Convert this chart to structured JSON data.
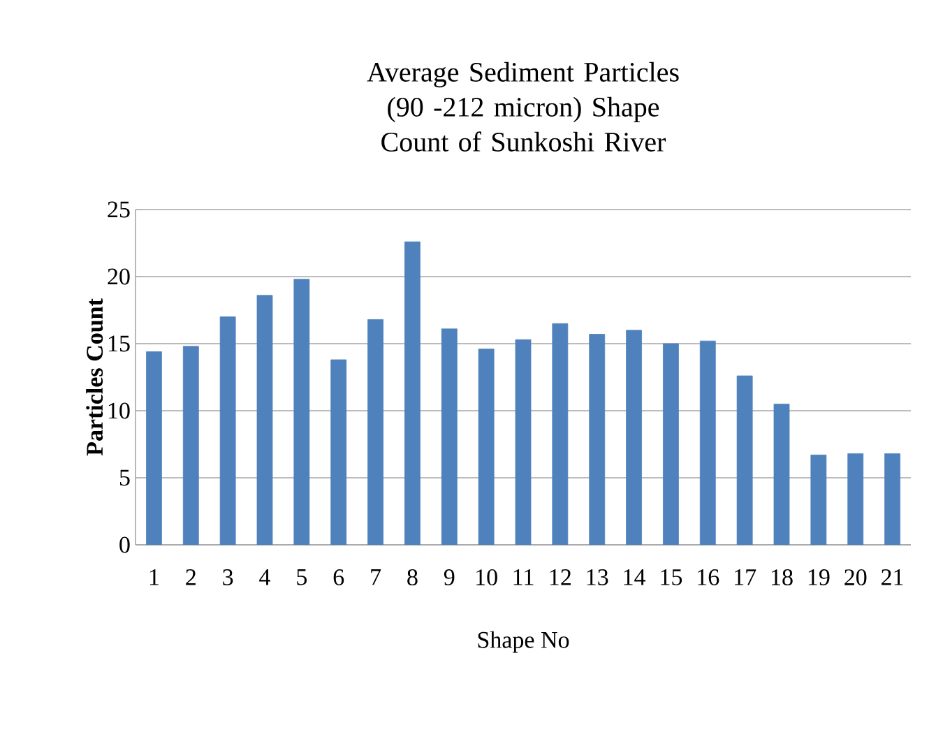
{
  "chart_data": {
    "type": "bar",
    "title": "Average Sediment Particles (90 -212 micron) Shape Count of Sunkoshi River",
    "xlabel": "Shape No",
    "ylabel": "Particles Count",
    "categories": [
      "1",
      "2",
      "3",
      "4",
      "5",
      "6",
      "7",
      "8",
      "9",
      "10",
      "11",
      "12",
      "13",
      "14",
      "15",
      "16",
      "17",
      "18",
      "19",
      "20",
      "21"
    ],
    "values": [
      14.4,
      14.8,
      17.0,
      18.6,
      19.8,
      13.8,
      16.8,
      22.6,
      16.1,
      14.6,
      15.3,
      16.5,
      15.7,
      16.0,
      15.0,
      15.2,
      12.6,
      10.5,
      6.7,
      6.8,
      6.8
    ],
    "color": "#4f81bd",
    "ylim": [
      0,
      25
    ],
    "yticks": [
      0,
      5,
      10,
      15,
      20,
      25
    ],
    "grid": "y"
  }
}
